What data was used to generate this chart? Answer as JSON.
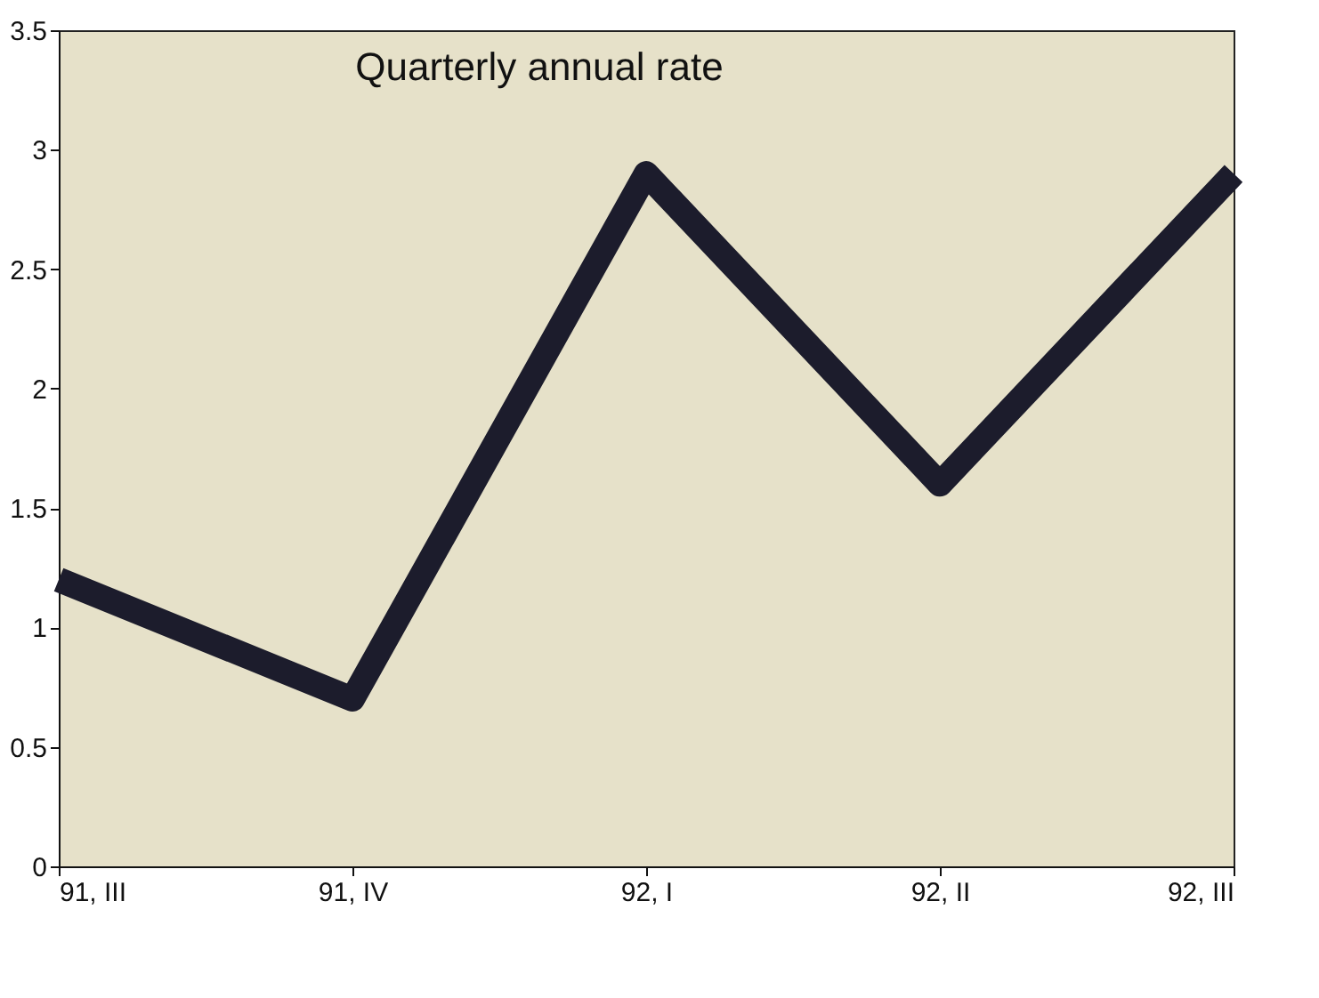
{
  "chart_data": {
    "type": "line",
    "title": "Quarterly annual rate",
    "categories": [
      "91, III",
      "91, IV",
      "92, I",
      "92, II",
      "92, III"
    ],
    "series": [
      {
        "color": "#1c1c2c",
        "values": [
          1.2,
          0.7,
          2.9,
          1.6,
          2.9
        ]
      }
    ],
    "ylim": [
      0,
      3.5
    ],
    "yticks": [
      0,
      0.5,
      1,
      1.5,
      2,
      2.5,
      3,
      3.5
    ],
    "grid": false,
    "legend": false,
    "marker": "none",
    "line_style": "solid"
  }
}
